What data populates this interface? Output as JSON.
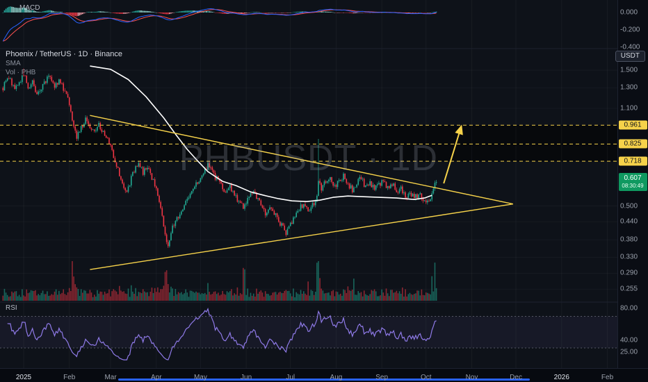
{
  "app": {
    "watermark": "PHBUSDT · 1D"
  },
  "legend": {
    "symbol": "Phoenix / TetherUS · 1D · Binance",
    "sma": "SMA",
    "volume": "Vol · PHB"
  },
  "panes": {
    "macd_label": "MACD",
    "rsi_label": "RSI"
  },
  "toolbar": {
    "currency_button": "USDT"
  },
  "colors": {
    "candle_up": "#22ab94",
    "candle_down": "#f23645",
    "vol_up": "rgba(34,171,148,0.55)",
    "vol_down": "rgba(242,54,69,0.55)",
    "sma": "#ffffff",
    "trend": "#f6d24a",
    "macd_line": "#2962ff",
    "macd_signal": "#ff5252",
    "hist_up": "#26a69a",
    "hist_up_f": "#8fd0ca",
    "hist_down": "#f23645",
    "hist_down_f": "#f8a0aa",
    "rsi": "#8f7ae8",
    "accent": "#2962ff",
    "level_tag_bg": "#f6d24a",
    "current_tag_bg": "#0f9960"
  },
  "price_scale": {
    "ticks": [
      {
        "label": "1.500",
        "p": 1.5
      },
      {
        "label": "1.300",
        "p": 1.3
      },
      {
        "label": "1.100",
        "p": 1.1
      },
      {
        "label": "0.500",
        "p": 0.5
      },
      {
        "label": "0.440",
        "p": 0.44
      },
      {
        "label": "0.380",
        "p": 0.38
      },
      {
        "label": "0.330",
        "p": 0.33
      },
      {
        "label": "0.290",
        "p": 0.29
      },
      {
        "label": "0.255",
        "p": 0.255
      }
    ],
    "key_levels": [
      {
        "label": "0.961",
        "price": 0.961
      },
      {
        "label": "0.825",
        "price": 0.825
      },
      {
        "label": "0.718",
        "price": 0.718
      }
    ],
    "current": {
      "label": "0.607",
      "price": 0.607,
      "countdown": "08:30:49"
    }
  },
  "macd_scale": [
    {
      "label": "0.000",
      "v": 0
    },
    {
      "label": "-0.200",
      "v": -0.2
    },
    {
      "label": "-0.400",
      "v": -0.4
    }
  ],
  "rsi_scale": [
    {
      "label": "80.00",
      "v": 80
    },
    {
      "label": "40.00",
      "v": 40
    },
    {
      "label": "25.00",
      "v": 25
    }
  ],
  "time_scale": [
    {
      "label": "2025",
      "d": 0,
      "major": true
    },
    {
      "label": "Feb",
      "d": 31
    },
    {
      "label": "Mar",
      "d": 59
    },
    {
      "label": "Apr",
      "d": 90
    },
    {
      "label": "May",
      "d": 120
    },
    {
      "label": "Jun",
      "d": 151
    },
    {
      "label": "Jul",
      "d": 181
    },
    {
      "label": "Aug",
      "d": 212
    },
    {
      "label": "Sep",
      "d": 243
    },
    {
      "label": "Oct",
      "d": 273
    },
    {
      "label": "Nov",
      "d": 304
    },
    {
      "label": "Dec",
      "d": 334
    },
    {
      "label": "2026",
      "d": 365,
      "major": true
    },
    {
      "label": "Feb",
      "d": 396
    }
  ],
  "chart_data": {
    "type": "candlestick",
    "title": "Phoenix / TetherUS · 1D · Binance",
    "symbol": "PHBUSDT",
    "interval": "1D",
    "exchange": "Binance",
    "y_scale": "log",
    "y_range": [
      0.24,
      1.8
    ],
    "start_day": -14,
    "end_day": 280,
    "last_close": 0.607,
    "price_path": [
      [
        -14,
        1.3
      ],
      [
        -10,
        1.42
      ],
      [
        -6,
        1.28
      ],
      [
        -2,
        1.38
      ],
      [
        0,
        1.46
      ],
      [
        3,
        1.3
      ],
      [
        6,
        1.36
      ],
      [
        9,
        1.22
      ],
      [
        12,
        1.3
      ],
      [
        15,
        1.38
      ],
      [
        18,
        1.44
      ],
      [
        21,
        1.32
      ],
      [
        24,
        1.38
      ],
      [
        27,
        1.3
      ],
      [
        30,
        1.22
      ],
      [
        33,
        1.02
      ],
      [
        36,
        0.88
      ],
      [
        39,
        0.94
      ],
      [
        42,
        1.0
      ],
      [
        45,
        0.95
      ],
      [
        48,
        0.9
      ],
      [
        51,
        0.97
      ],
      [
        54,
        0.9
      ],
      [
        57,
        0.86
      ],
      [
        60,
        0.78
      ],
      [
        63,
        0.7
      ],
      [
        66,
        0.61
      ],
      [
        69,
        0.56
      ],
      [
        72,
        0.6
      ],
      [
        75,
        0.67
      ],
      [
        78,
        0.71
      ],
      [
        81,
        0.65
      ],
      [
        84,
        0.69
      ],
      [
        87,
        0.63
      ],
      [
        90,
        0.57
      ],
      [
        93,
        0.48
      ],
      [
        96,
        0.4
      ],
      [
        98,
        0.365
      ],
      [
        101,
        0.42
      ],
      [
        104,
        0.45
      ],
      [
        107,
        0.48
      ],
      [
        110,
        0.52
      ],
      [
        113,
        0.55
      ],
      [
        116,
        0.58
      ],
      [
        119,
        0.62
      ],
      [
        122,
        0.66
      ],
      [
        125,
        0.69
      ],
      [
        128,
        0.655
      ],
      [
        131,
        0.62
      ],
      [
        134,
        0.59
      ],
      [
        137,
        0.56
      ],
      [
        140,
        0.585
      ],
      [
        143,
        0.55
      ],
      [
        146,
        0.52
      ],
      [
        149,
        0.5
      ],
      [
        152,
        0.53
      ],
      [
        155,
        0.56
      ],
      [
        158,
        0.54
      ],
      [
        161,
        0.5
      ],
      [
        164,
        0.47
      ],
      [
        167,
        0.5
      ],
      [
        170,
        0.47
      ],
      [
        173,
        0.44
      ],
      [
        176,
        0.42
      ],
      [
        178,
        0.405
      ],
      [
        181,
        0.43
      ],
      [
        184,
        0.46
      ],
      [
        187,
        0.49
      ],
      [
        190,
        0.51
      ],
      [
        193,
        0.48
      ],
      [
        196,
        0.5
      ],
      [
        199,
        0.53
      ],
      [
        200,
        0.6
      ],
      [
        202,
        0.58
      ],
      [
        205,
        0.61
      ],
      [
        208,
        0.63
      ],
      [
        211,
        0.58
      ],
      [
        214,
        0.61
      ],
      [
        217,
        0.64
      ],
      [
        220,
        0.6
      ],
      [
        223,
        0.57
      ],
      [
        226,
        0.6
      ],
      [
        229,
        0.63
      ],
      [
        232,
        0.58
      ],
      [
        235,
        0.6
      ],
      [
        238,
        0.57
      ],
      [
        241,
        0.59
      ],
      [
        244,
        0.61
      ],
      [
        247,
        0.58
      ],
      [
        250,
        0.6
      ],
      [
        253,
        0.56
      ],
      [
        256,
        0.58
      ],
      [
        259,
        0.54
      ],
      [
        262,
        0.56
      ],
      [
        265,
        0.53
      ],
      [
        268,
        0.55
      ],
      [
        271,
        0.53
      ],
      [
        274,
        0.52
      ],
      [
        276,
        0.54
      ],
      [
        278,
        0.57
      ],
      [
        280,
        0.607
      ]
    ],
    "wick_overrides": {
      "0": 1.52,
      "125": 0.72,
      "200": 0.86
    },
    "sma_path": [
      [
        45,
        1.55
      ],
      [
        59,
        1.51
      ],
      [
        71,
        1.39
      ],
      [
        83,
        1.21
      ],
      [
        95,
        1.02
      ],
      [
        104,
        0.88
      ],
      [
        111,
        0.79
      ],
      [
        118,
        0.72
      ],
      [
        125,
        0.66
      ],
      [
        135,
        0.61
      ],
      [
        144,
        0.59
      ],
      [
        154,
        0.56
      ],
      [
        163,
        0.545
      ],
      [
        173,
        0.53
      ],
      [
        182,
        0.521
      ],
      [
        192,
        0.518
      ],
      [
        201,
        0.524
      ],
      [
        210,
        0.536
      ],
      [
        220,
        0.542
      ],
      [
        229,
        0.539
      ],
      [
        241,
        0.536
      ],
      [
        253,
        0.533
      ],
      [
        265,
        0.527
      ],
      [
        272,
        0.533
      ],
      [
        277,
        0.545
      ]
    ],
    "volume_spikes": {
      "33": 3.5,
      "34": 3,
      "35": 2.5,
      "96": 2.5,
      "97": 2.2,
      "98": 2.5,
      "125": 2,
      "149": 4,
      "150": 3,
      "193": 2.5,
      "199": 4.5,
      "200": 5,
      "201": 3.5,
      "220": 2.5,
      "224": 2,
      "250": 2.5,
      "277": 2.5,
      "279": 3,
      "280": 3.5
    },
    "bands": [
      [
        0.961,
        0.825
      ],
      [
        0.825,
        0.718
      ]
    ],
    "trendlines": [
      {
        "name": "descending",
        "d1": 45,
        "p1": 1.04,
        "d2": 332,
        "p2": 0.508
      },
      {
        "name": "ascending",
        "d1": 45,
        "p1": 0.299,
        "d2": 332,
        "p2": 0.508
      }
    ],
    "projection_arrow": {
      "d1": 285,
      "p1": 0.6,
      "d2": 297,
      "p2": 0.955
    },
    "horizontal_levels": [
      0.961,
      0.825,
      0.718
    ],
    "indicators": {
      "macd": {
        "fast": 12,
        "slow": 26,
        "signal": 9,
        "scale": [
          0,
          -0.2,
          -0.4
        ]
      },
      "rsi": {
        "length": 14,
        "bands": [
          70,
          30
        ],
        "scale": [
          80,
          40,
          25
        ]
      },
      "sma": {
        "color": "white"
      },
      "volume": {
        "label": "Vol · PHB"
      }
    }
  }
}
